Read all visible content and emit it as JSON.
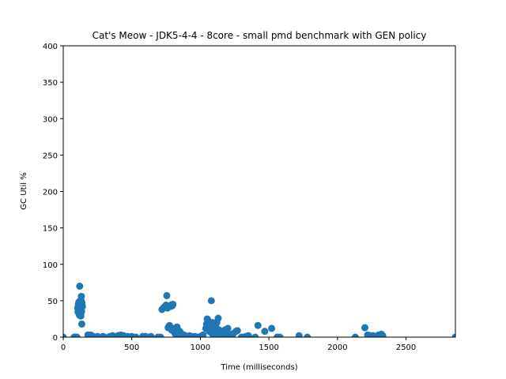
{
  "chart_data": {
    "type": "scatter",
    "title": "Cat's Meow - JDK5-4-4 - 8core -  small pmd benchmark with GEN policy",
    "xlabel": "Time (milliseconds)",
    "ylabel": "GC Util %",
    "xlim": [
      0,
      2860
    ],
    "ylim": [
      0,
      400
    ],
    "xticks": [
      0,
      500,
      1000,
      1500,
      2000,
      2500
    ],
    "yticks": [
      0,
      50,
      100,
      150,
      200,
      250,
      300,
      350,
      400
    ],
    "grid": false,
    "marker_color": "#1f77b4",
    "points": [
      [
        0,
        0
      ],
      [
        80,
        0
      ],
      [
        90,
        0
      ],
      [
        100,
        0
      ],
      [
        105,
        40
      ],
      [
        108,
        35
      ],
      [
        110,
        45
      ],
      [
        112,
        33
      ],
      [
        114,
        48
      ],
      [
        115,
        38
      ],
      [
        116,
        42
      ],
      [
        118,
        36
      ],
      [
        119,
        30
      ],
      [
        120,
        70
      ],
      [
        121,
        44
      ],
      [
        122,
        47
      ],
      [
        123,
        50
      ],
      [
        124,
        38
      ],
      [
        125,
        41
      ],
      [
        126,
        45
      ],
      [
        127,
        33
      ],
      [
        128,
        29
      ],
      [
        130,
        43
      ],
      [
        131,
        50
      ],
      [
        132,
        56
      ],
      [
        134,
        35
      ],
      [
        135,
        18
      ],
      [
        136,
        47
      ],
      [
        138,
        43
      ],
      [
        140,
        42
      ],
      [
        180,
        3
      ],
      [
        200,
        3
      ],
      [
        220,
        1
      ],
      [
        250,
        1
      ],
      [
        290,
        1
      ],
      [
        300,
        0
      ],
      [
        340,
        1
      ],
      [
        360,
        2
      ],
      [
        380,
        1
      ],
      [
        400,
        2
      ],
      [
        420,
        3
      ],
      [
        440,
        2
      ],
      [
        470,
        1
      ],
      [
        500,
        1
      ],
      [
        530,
        0
      ],
      [
        580,
        1
      ],
      [
        600,
        1
      ],
      [
        620,
        0
      ],
      [
        640,
        1
      ],
      [
        690,
        0
      ],
      [
        710,
        0
      ],
      [
        720,
        38
      ],
      [
        730,
        40
      ],
      [
        740,
        42
      ],
      [
        750,
        44
      ],
      [
        755,
        57
      ],
      [
        760,
        40
      ],
      [
        765,
        13
      ],
      [
        770,
        14
      ],
      [
        775,
        16
      ],
      [
        780,
        42
      ],
      [
        785,
        44
      ],
      [
        790,
        10
      ],
      [
        795,
        43
      ],
      [
        800,
        45
      ],
      [
        805,
        8
      ],
      [
        810,
        12
      ],
      [
        815,
        5
      ],
      [
        820,
        6
      ],
      [
        825,
        12
      ],
      [
        830,
        14
      ],
      [
        835,
        4
      ],
      [
        840,
        3
      ],
      [
        850,
        8
      ],
      [
        860,
        5
      ],
      [
        870,
        2
      ],
      [
        880,
        3
      ],
      [
        900,
        1
      ],
      [
        920,
        2
      ],
      [
        940,
        1
      ],
      [
        960,
        1
      ],
      [
        980,
        0
      ],
      [
        1000,
        1
      ],
      [
        1020,
        3
      ],
      [
        1040,
        12
      ],
      [
        1045,
        18
      ],
      [
        1050,
        25
      ],
      [
        1055,
        23
      ],
      [
        1060,
        20
      ],
      [
        1065,
        8
      ],
      [
        1070,
        15
      ],
      [
        1075,
        10
      ],
      [
        1080,
        50
      ],
      [
        1085,
        5
      ],
      [
        1090,
        20
      ],
      [
        1095,
        12
      ],
      [
        1100,
        18
      ],
      [
        1105,
        3
      ],
      [
        1110,
        15
      ],
      [
        1115,
        8
      ],
      [
        1120,
        20
      ],
      [
        1125,
        4
      ],
      [
        1130,
        26
      ],
      [
        1135,
        10
      ],
      [
        1140,
        6
      ],
      [
        1150,
        3
      ],
      [
        1160,
        8
      ],
      [
        1170,
        2
      ],
      [
        1180,
        10
      ],
      [
        1190,
        5
      ],
      [
        1200,
        12
      ],
      [
        1210,
        4
      ],
      [
        1220,
        3
      ],
      [
        1230,
        2
      ],
      [
        1240,
        5
      ],
      [
        1260,
        8
      ],
      [
        1270,
        9
      ],
      [
        1300,
        0
      ],
      [
        1330,
        1
      ],
      [
        1350,
        2
      ],
      [
        1400,
        0
      ],
      [
        1420,
        16
      ],
      [
        1470,
        8
      ],
      [
        1520,
        12
      ],
      [
        1560,
        0
      ],
      [
        1580,
        0
      ],
      [
        1720,
        2
      ],
      [
        1780,
        0
      ],
      [
        2130,
        0
      ],
      [
        2200,
        13
      ],
      [
        2220,
        3
      ],
      [
        2240,
        2
      ],
      [
        2260,
        2
      ],
      [
        2280,
        1
      ],
      [
        2300,
        3
      ],
      [
        2320,
        4
      ],
      [
        2330,
        2
      ],
      [
        2860,
        0
      ]
    ]
  }
}
